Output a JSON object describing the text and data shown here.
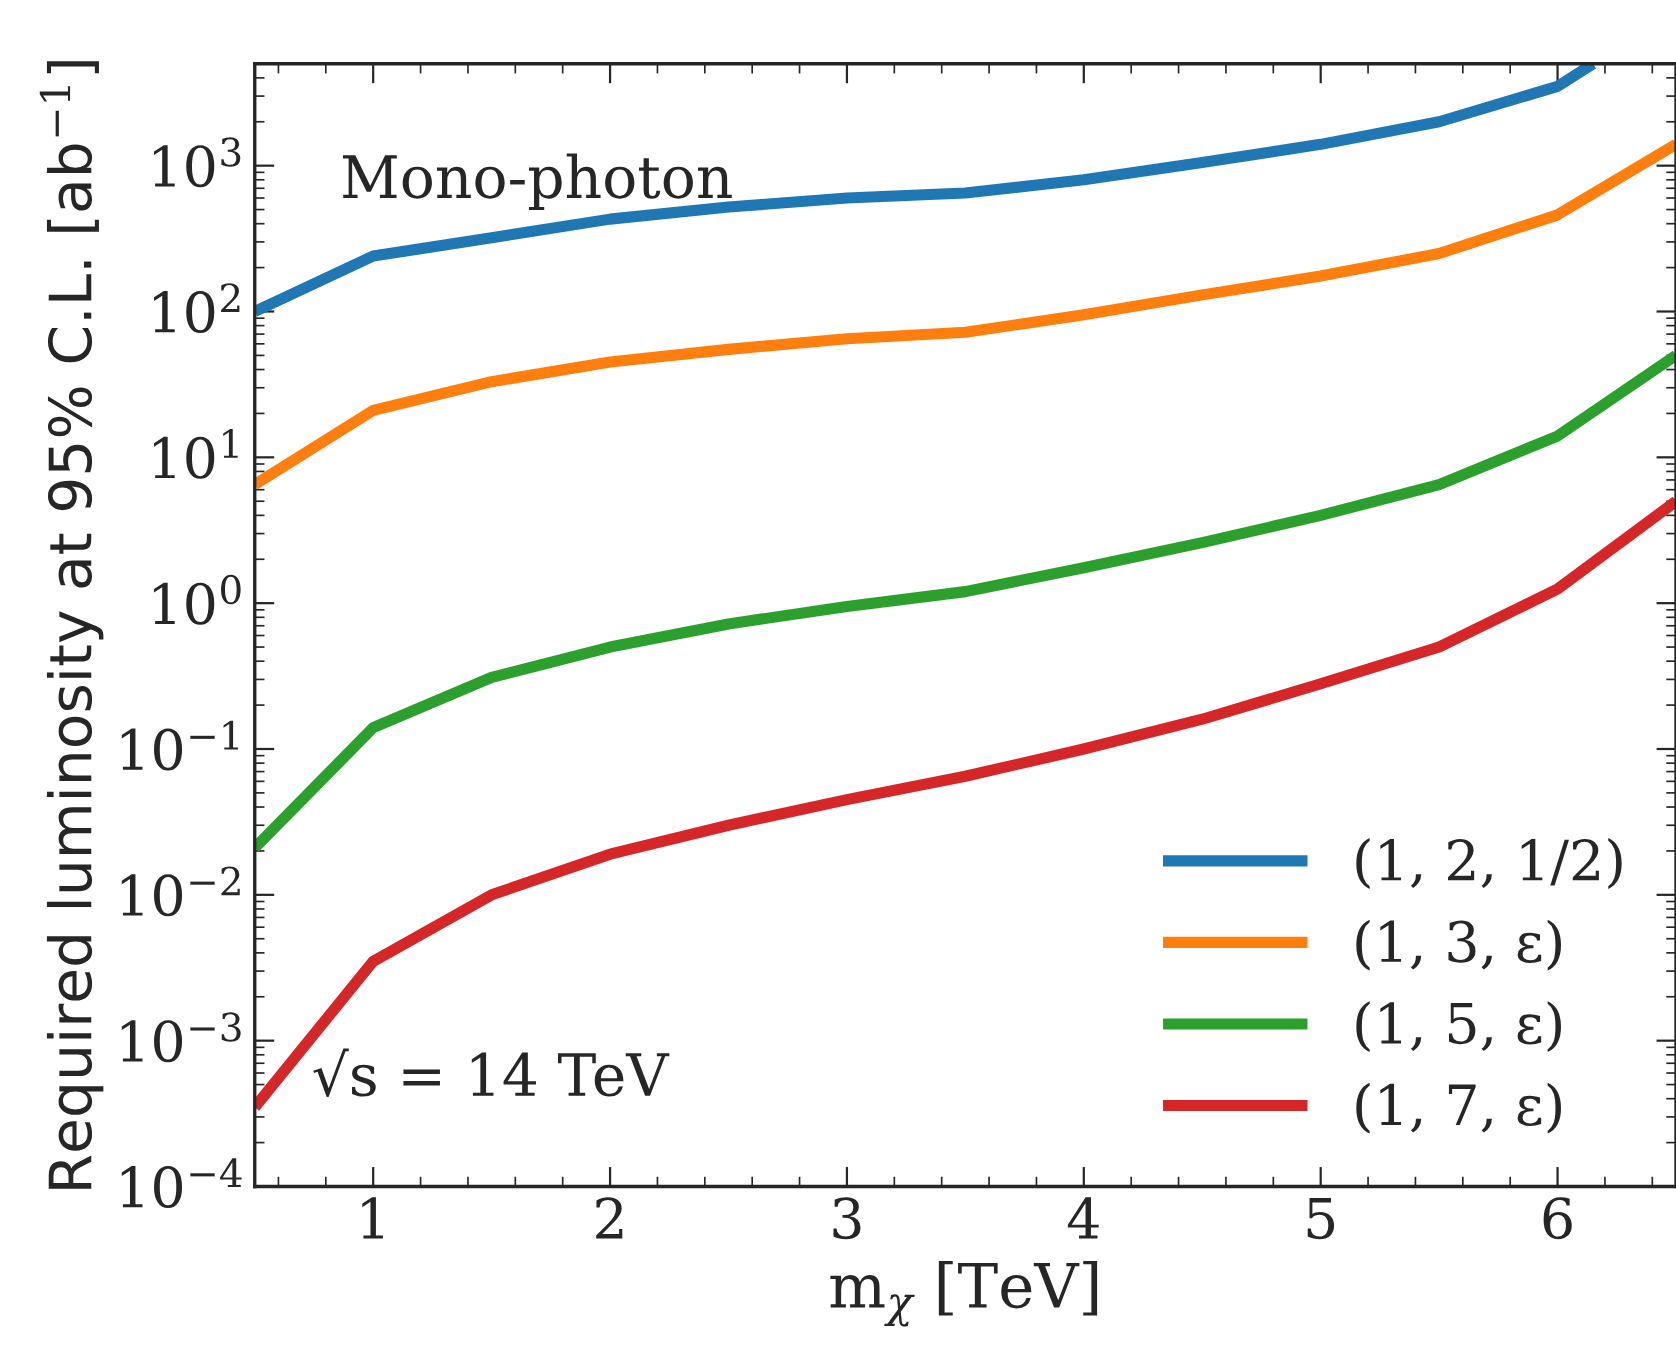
{
  "chart_data": {
    "type": "line",
    "xlabel": "m$_{χ}$ [TeV]",
    "ylabel": "Required luminosity at 95% C.L. [ab$^{−1}$]",
    "x": [
      0.5,
      1,
      1.5,
      2,
      2.5,
      3,
      3.5,
      4,
      4.5,
      5,
      5.5,
      6,
      6.5
    ],
    "series": [
      {
        "name": "(1, 2, 1/2)",
        "color": "#1f77b4",
        "x": [
          0.5,
          1,
          1.5,
          2,
          2.5,
          3,
          3.5,
          4,
          4.5,
          5,
          5.5,
          6,
          6.15
        ],
        "values": [
          100,
          240,
          320,
          430,
          520,
          600,
          650,
          800,
          1050,
          1400,
          2000,
          3500,
          5000
        ]
      },
      {
        "name": "(1, 3, ε)",
        "color": "#ff7f0e",
        "values": [
          6.5,
          21,
          33,
          45,
          55,
          65,
          72,
          95,
          130,
          175,
          250,
          460,
          1400
        ]
      },
      {
        "name": "(1, 5, ε)",
        "color": "#2ca02c",
        "values": [
          0.021,
          0.14,
          0.31,
          0.5,
          0.72,
          0.95,
          1.2,
          1.75,
          2.6,
          4.0,
          6.5,
          14,
          50
        ]
      },
      {
        "name": "(1, 7, ε)",
        "color": "#d62728",
        "values": [
          0.00035,
          0.0035,
          0.01,
          0.019,
          0.03,
          0.045,
          0.065,
          0.1,
          0.16,
          0.28,
          0.5,
          1.25,
          5
        ]
      }
    ],
    "annotations": [
      "Mono-photon",
      "√s = 14 TeV"
    ],
    "log": "y",
    "xlim": [
      0.5,
      6.5
    ],
    "ylim": [
      0.0001,
      5000
    ],
    "xticks": [
      1,
      2,
      3,
      4,
      5,
      6
    ],
    "yticks": [
      {
        "value": 0.0001,
        "label": "10$^{−4}$"
      },
      {
        "value": 0.001,
        "label": "10$^{−3}$"
      },
      {
        "value": 0.01,
        "label": "10$^{−2}$"
      },
      {
        "value": 0.1,
        "label": "10$^{−1}$"
      },
      {
        "value": 1,
        "label": "10$^{0}$"
      },
      {
        "value": 10,
        "label": "10$^{1}$"
      },
      {
        "value": 100,
        "label": "10$^{2}$"
      },
      {
        "value": 1000,
        "label": "10$^{3}$"
      }
    ],
    "grid": false,
    "legend": "bottom right",
    "line_style": "solid",
    "marker": "none"
  }
}
